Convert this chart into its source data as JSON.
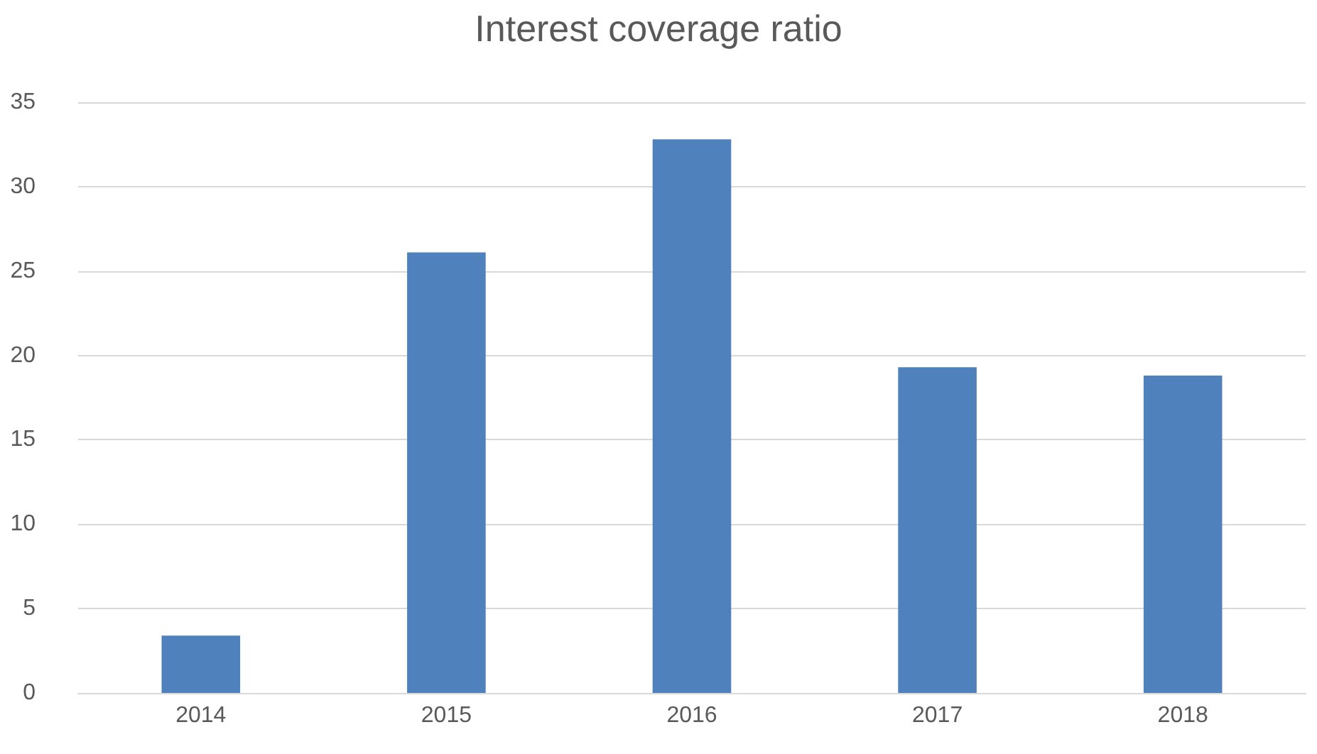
{
  "chart_data": {
    "type": "bar",
    "title": "Interest coverage ratio",
    "categories": [
      "2014",
      "2015",
      "2016",
      "2017",
      "2018"
    ],
    "values": [
      3.4,
      26.1,
      32.8,
      19.3,
      18.8
    ],
    "color": "#4f81bd",
    "ylim": [
      0,
      35
    ],
    "yticks": [
      0,
      5,
      10,
      15,
      20,
      25,
      30,
      35
    ],
    "grid": "y"
  }
}
